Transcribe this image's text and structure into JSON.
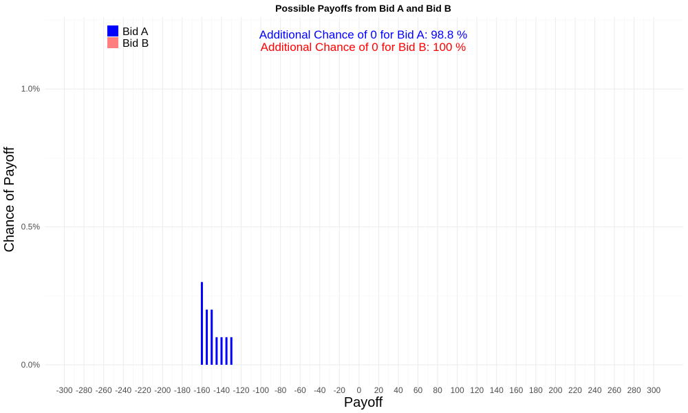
{
  "chart_data": {
    "type": "bar",
    "title": "Possible Payoffs from Bid A and Bid B",
    "xlabel": "Payoff",
    "ylabel": "Chance of Payoff",
    "xlim": [
      -320,
      330
    ],
    "ylim": [
      -0.0008,
      0.0126
    ],
    "x_ticks": [
      -300,
      -280,
      -260,
      -240,
      -220,
      -200,
      -180,
      -160,
      -140,
      -120,
      -100,
      -80,
      -60,
      -40,
      -20,
      0,
      20,
      40,
      60,
      80,
      100,
      120,
      140,
      160,
      180,
      200,
      220,
      240,
      260,
      280,
      300
    ],
    "y_ticks": [
      0,
      0.005,
      0.01
    ],
    "y_tick_labels": [
      "0.0%",
      "0.5%",
      "1.0%"
    ],
    "grid": true,
    "legend_position": "top-left",
    "series": [
      {
        "name": "Bid A",
        "color": "#0000ff",
        "x": [
          -160,
          -155,
          -150,
          -145,
          -140,
          -135,
          -130
        ],
        "values": [
          0.003,
          0.002,
          0.002,
          0.001,
          0.001,
          0.001,
          0.001
        ]
      },
      {
        "name": "Bid B",
        "color": "#ff7f7f",
        "x": [],
        "values": []
      }
    ],
    "annotations": [
      {
        "text": "Additional Chance of 0 for Bid A:  98.8 %",
        "color": "#0000ff"
      },
      {
        "text": "Additional Chance of 0 for Bid B:  100 %",
        "color": "#ff0000"
      }
    ]
  }
}
